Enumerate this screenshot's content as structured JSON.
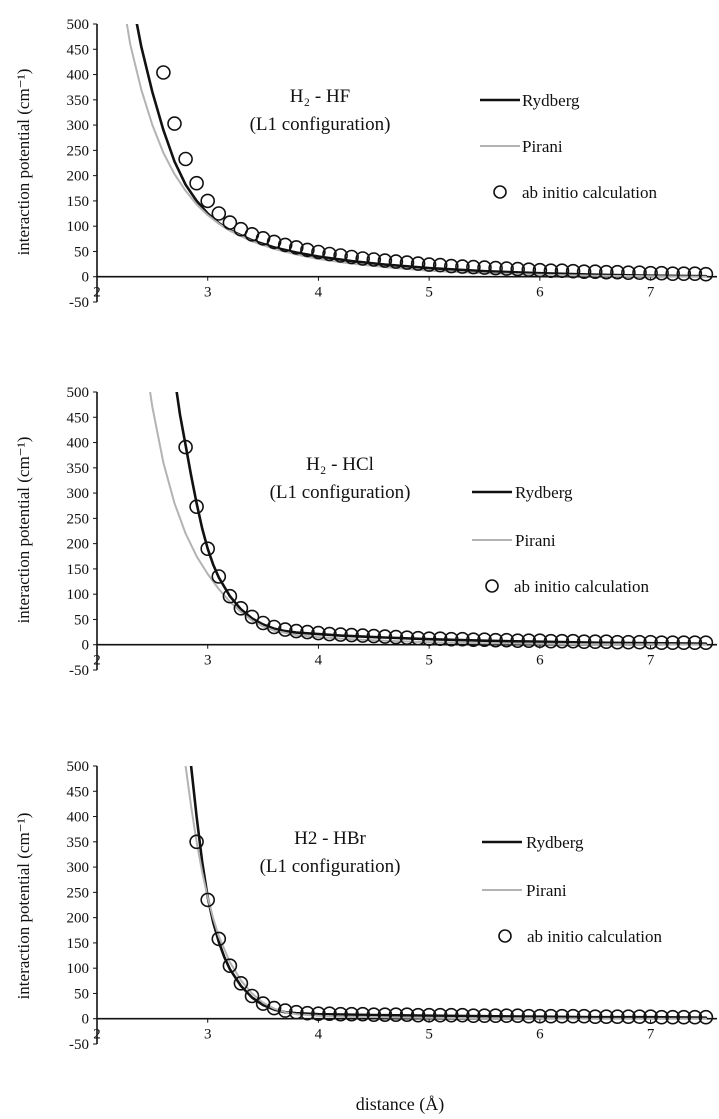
{
  "chart_data": [
    {
      "type": "line",
      "title": "H₂ - HF",
      "subtitle": "(L1 configuration)",
      "xlabel": "",
      "ylabel": "interaction potential (cm⁻¹)",
      "xlim": [
        2,
        7.6
      ],
      "ylim": [
        -50,
        500
      ],
      "x_ticks": [
        "2",
        "3",
        "4",
        "5",
        "6",
        "7"
      ],
      "y_ticks": [
        "500",
        "450",
        "400",
        "350",
        "300",
        "250",
        "200",
        "150",
        "100",
        "50",
        "0",
        "-50"
      ],
      "legend_position": "right",
      "legend": {
        "rydberg": "Rydberg",
        "pirani": "Pirani",
        "abinitio": "ab initio calculation"
      },
      "series": [
        {
          "name": "Rydberg",
          "style": "line",
          "color": "#111111",
          "x": [
            2.36,
            2.4,
            2.5,
            2.6,
            2.7,
            2.8,
            2.9,
            3.0,
            3.1,
            3.2,
            3.4,
            3.6,
            3.8,
            4.0,
            4.3,
            4.6,
            5.0,
            5.5,
            6.0,
            6.5,
            7.0,
            7.5
          ],
          "y": [
            500,
            455,
            365,
            290,
            228,
            182,
            150,
            125,
            106,
            92,
            72,
            58,
            48,
            40,
            31,
            24,
            17,
            11,
            7,
            4,
            2,
            1
          ]
        },
        {
          "name": "Pirani",
          "style": "line",
          "color": "#b3b3b3",
          "x": [
            2.27,
            2.3,
            2.4,
            2.5,
            2.6,
            2.7,
            2.8,
            2.9,
            3.0,
            3.1,
            3.2,
            3.4,
            3.6,
            3.8,
            4.0,
            4.3,
            4.6,
            5.0,
            5.5,
            6.0,
            6.5,
            7.0,
            7.5
          ],
          "y": [
            500,
            460,
            370,
            300,
            245,
            203,
            170,
            143,
            122,
            105,
            91,
            70,
            55,
            44,
            35,
            26,
            19,
            12,
            7,
            4,
            2,
            1,
            0
          ]
        },
        {
          "name": "ab initio calculation",
          "style": "marker",
          "x": [
            2.6,
            2.7,
            2.8,
            2.9,
            3.0,
            3.1,
            3.2,
            3.3,
            3.4,
            3.5,
            3.6,
            3.7,
            3.8,
            3.9,
            4.0,
            4.1,
            4.2,
            4.3,
            4.4,
            4.5,
            4.6,
            4.7,
            4.8,
            4.9,
            5.0,
            5.1,
            5.2,
            5.3,
            5.4,
            5.5,
            5.6,
            5.7,
            5.8,
            5.9,
            6.0,
            6.1,
            6.2,
            6.3,
            6.4,
            6.5,
            6.6,
            6.7,
            6.8,
            6.9,
            7.0,
            7.1,
            7.2,
            7.3,
            7.4,
            7.5
          ],
          "y": [
            404,
            303,
            233,
            185,
            150,
            125,
            107,
            94,
            84,
            76,
            69,
            63,
            58,
            53,
            49,
            45,
            42,
            39,
            36,
            34,
            32,
            30,
            28,
            26,
            24,
            23,
            21,
            20,
            19,
            18,
            17,
            16,
            15,
            14,
            13,
            12,
            12,
            11,
            10,
            10,
            9,
            9,
            8,
            8,
            7,
            7,
            6,
            6,
            6,
            5
          ]
        }
      ]
    },
    {
      "type": "line",
      "title": "H₂ - HCl",
      "subtitle": "(L1 configuration)",
      "xlabel": "",
      "ylabel": "interaction potential (cm⁻¹)",
      "xlim": [
        2,
        7.6
      ],
      "ylim": [
        -50,
        500
      ],
      "x_ticks": [
        "2",
        "3",
        "4",
        "5",
        "6",
        "7"
      ],
      "y_ticks": [
        "500",
        "450",
        "400",
        "350",
        "300",
        "250",
        "200",
        "150",
        "100",
        "50",
        "0",
        "-50"
      ],
      "legend_position": "right",
      "legend": {
        "rydberg": "Rydberg",
        "pirani": "Pirani",
        "abinitio": "ab initio calculation"
      },
      "series": [
        {
          "name": "Rydberg",
          "style": "line",
          "color": "#111111",
          "x": [
            2.72,
            2.75,
            2.8,
            2.85,
            2.9,
            2.95,
            3.0,
            3.05,
            3.1,
            3.2,
            3.3,
            3.4,
            3.5,
            3.6,
            3.7,
            3.8,
            4.0,
            4.2,
            4.5,
            5.0,
            5.5,
            6.0,
            6.5,
            7.0,
            7.5
          ],
          "y": [
            500,
            455,
            395,
            335,
            280,
            230,
            190,
            158,
            133,
            96,
            70,
            52,
            40,
            32,
            27,
            24,
            21,
            18,
            15,
            11,
            8,
            6,
            4,
            3,
            2
          ]
        },
        {
          "name": "Pirani",
          "style": "line",
          "color": "#b3b3b3",
          "x": [
            2.48,
            2.5,
            2.6,
            2.7,
            2.8,
            2.9,
            3.0,
            3.1,
            3.2,
            3.3,
            3.4,
            3.5,
            3.6,
            3.8,
            4.0,
            4.3,
            4.6,
            5.0,
            5.5,
            6.0,
            6.5,
            7.0,
            7.5
          ],
          "y": [
            500,
            470,
            360,
            280,
            220,
            175,
            140,
            110,
            85,
            65,
            48,
            36,
            28,
            19,
            15,
            11,
            8,
            5,
            3,
            2,
            1,
            1,
            0
          ]
        },
        {
          "name": "ab initio calculation",
          "style": "marker",
          "x": [
            2.8,
            2.9,
            3.0,
            3.1,
            3.2,
            3.3,
            3.4,
            3.5,
            3.6,
            3.7,
            3.8,
            3.9,
            4.0,
            4.1,
            4.2,
            4.3,
            4.4,
            4.5,
            4.6,
            4.7,
            4.8,
            4.9,
            5.0,
            5.1,
            5.2,
            5.3,
            5.4,
            5.5,
            5.6,
            5.7,
            5.8,
            5.9,
            6.0,
            6.1,
            6.2,
            6.3,
            6.4,
            6.5,
            6.6,
            6.7,
            6.8,
            6.9,
            7.0,
            7.1,
            7.2,
            7.3,
            7.4,
            7.5
          ],
          "y": [
            391,
            273,
            190,
            135,
            96,
            72,
            55,
            43,
            35,
            30,
            27,
            25,
            23,
            21,
            20,
            19,
            18,
            17,
            16,
            15,
            14,
            13,
            12,
            12,
            11,
            11,
            10,
            10,
            9,
            9,
            8,
            8,
            8,
            7,
            7,
            7,
            6,
            6,
            6,
            5,
            5,
            5,
            5,
            4,
            4,
            4,
            4,
            4
          ]
        }
      ]
    },
    {
      "type": "line",
      "title": "H2 - HBr",
      "subtitle": "(L1 configuration)",
      "xlabel": "distance (Å)",
      "ylabel": "interaction potential (cm⁻¹)",
      "xlim": [
        2,
        7.6
      ],
      "ylim": [
        -50,
        500
      ],
      "x_ticks": [
        "2",
        "3",
        "4",
        "5",
        "6",
        "7"
      ],
      "y_ticks": [
        "500",
        "450",
        "400",
        "350",
        "300",
        "250",
        "200",
        "150",
        "100",
        "50",
        "0",
        "-50"
      ],
      "legend_position": "right",
      "legend": {
        "rydberg": "Rydberg",
        "pirani": "Pirani",
        "abinitio": "ab initio calculation"
      },
      "series": [
        {
          "name": "Rydberg",
          "style": "line",
          "color": "#111111",
          "x": [
            2.85,
            2.9,
            2.95,
            3.0,
            3.05,
            3.1,
            3.15,
            3.2,
            3.3,
            3.4,
            3.5,
            3.6,
            3.7,
            3.8,
            4.0,
            4.3,
            4.6,
            5.0,
            5.5,
            6.0,
            6.5,
            7.0,
            7.5
          ],
          "y": [
            500,
            400,
            310,
            240,
            190,
            152,
            122,
            98,
            65,
            42,
            27,
            18,
            13,
            11,
            9,
            8,
            7,
            6,
            5,
            4,
            3,
            3,
            2
          ]
        },
        {
          "name": "Pirani",
          "style": "line",
          "color": "#b3b3b3",
          "x": [
            2.8,
            2.85,
            2.9,
            2.95,
            3.0,
            3.05,
            3.1,
            3.2,
            3.3,
            3.4,
            3.5,
            3.6,
            3.7,
            3.8,
            4.0,
            4.3,
            4.6,
            5.0,
            5.5,
            6.0,
            6.5,
            7.0,
            7.5
          ],
          "y": [
            500,
            420,
            350,
            290,
            240,
            198,
            163,
            112,
            76,
            50,
            32,
            20,
            13,
            9,
            6,
            4,
            3,
            2,
            1,
            1,
            0,
            0,
            0
          ]
        },
        {
          "name": "ab initio calculation",
          "style": "marker",
          "x": [
            2.9,
            3.0,
            3.1,
            3.2,
            3.3,
            3.4,
            3.5,
            3.6,
            3.7,
            3.8,
            3.9,
            4.0,
            4.1,
            4.2,
            4.3,
            4.4,
            4.5,
            4.6,
            4.7,
            4.8,
            4.9,
            5.0,
            5.1,
            5.2,
            5.3,
            5.4,
            5.5,
            5.6,
            5.7,
            5.8,
            5.9,
            6.0,
            6.1,
            6.2,
            6.3,
            6.4,
            6.5,
            6.6,
            6.7,
            6.8,
            6.9,
            7.0,
            7.1,
            7.2,
            7.3,
            7.4,
            7.5
          ],
          "y": [
            350,
            235,
            158,
            105,
            70,
            45,
            30,
            21,
            16,
            13,
            11,
            10,
            10,
            9,
            9,
            9,
            8,
            8,
            8,
            8,
            7,
            7,
            7,
            7,
            7,
            6,
            6,
            6,
            6,
            6,
            5,
            5,
            5,
            5,
            5,
            5,
            4,
            4,
            4,
            4,
            4,
            4,
            3,
            3,
            3,
            3,
            3
          ]
        }
      ]
    }
  ]
}
